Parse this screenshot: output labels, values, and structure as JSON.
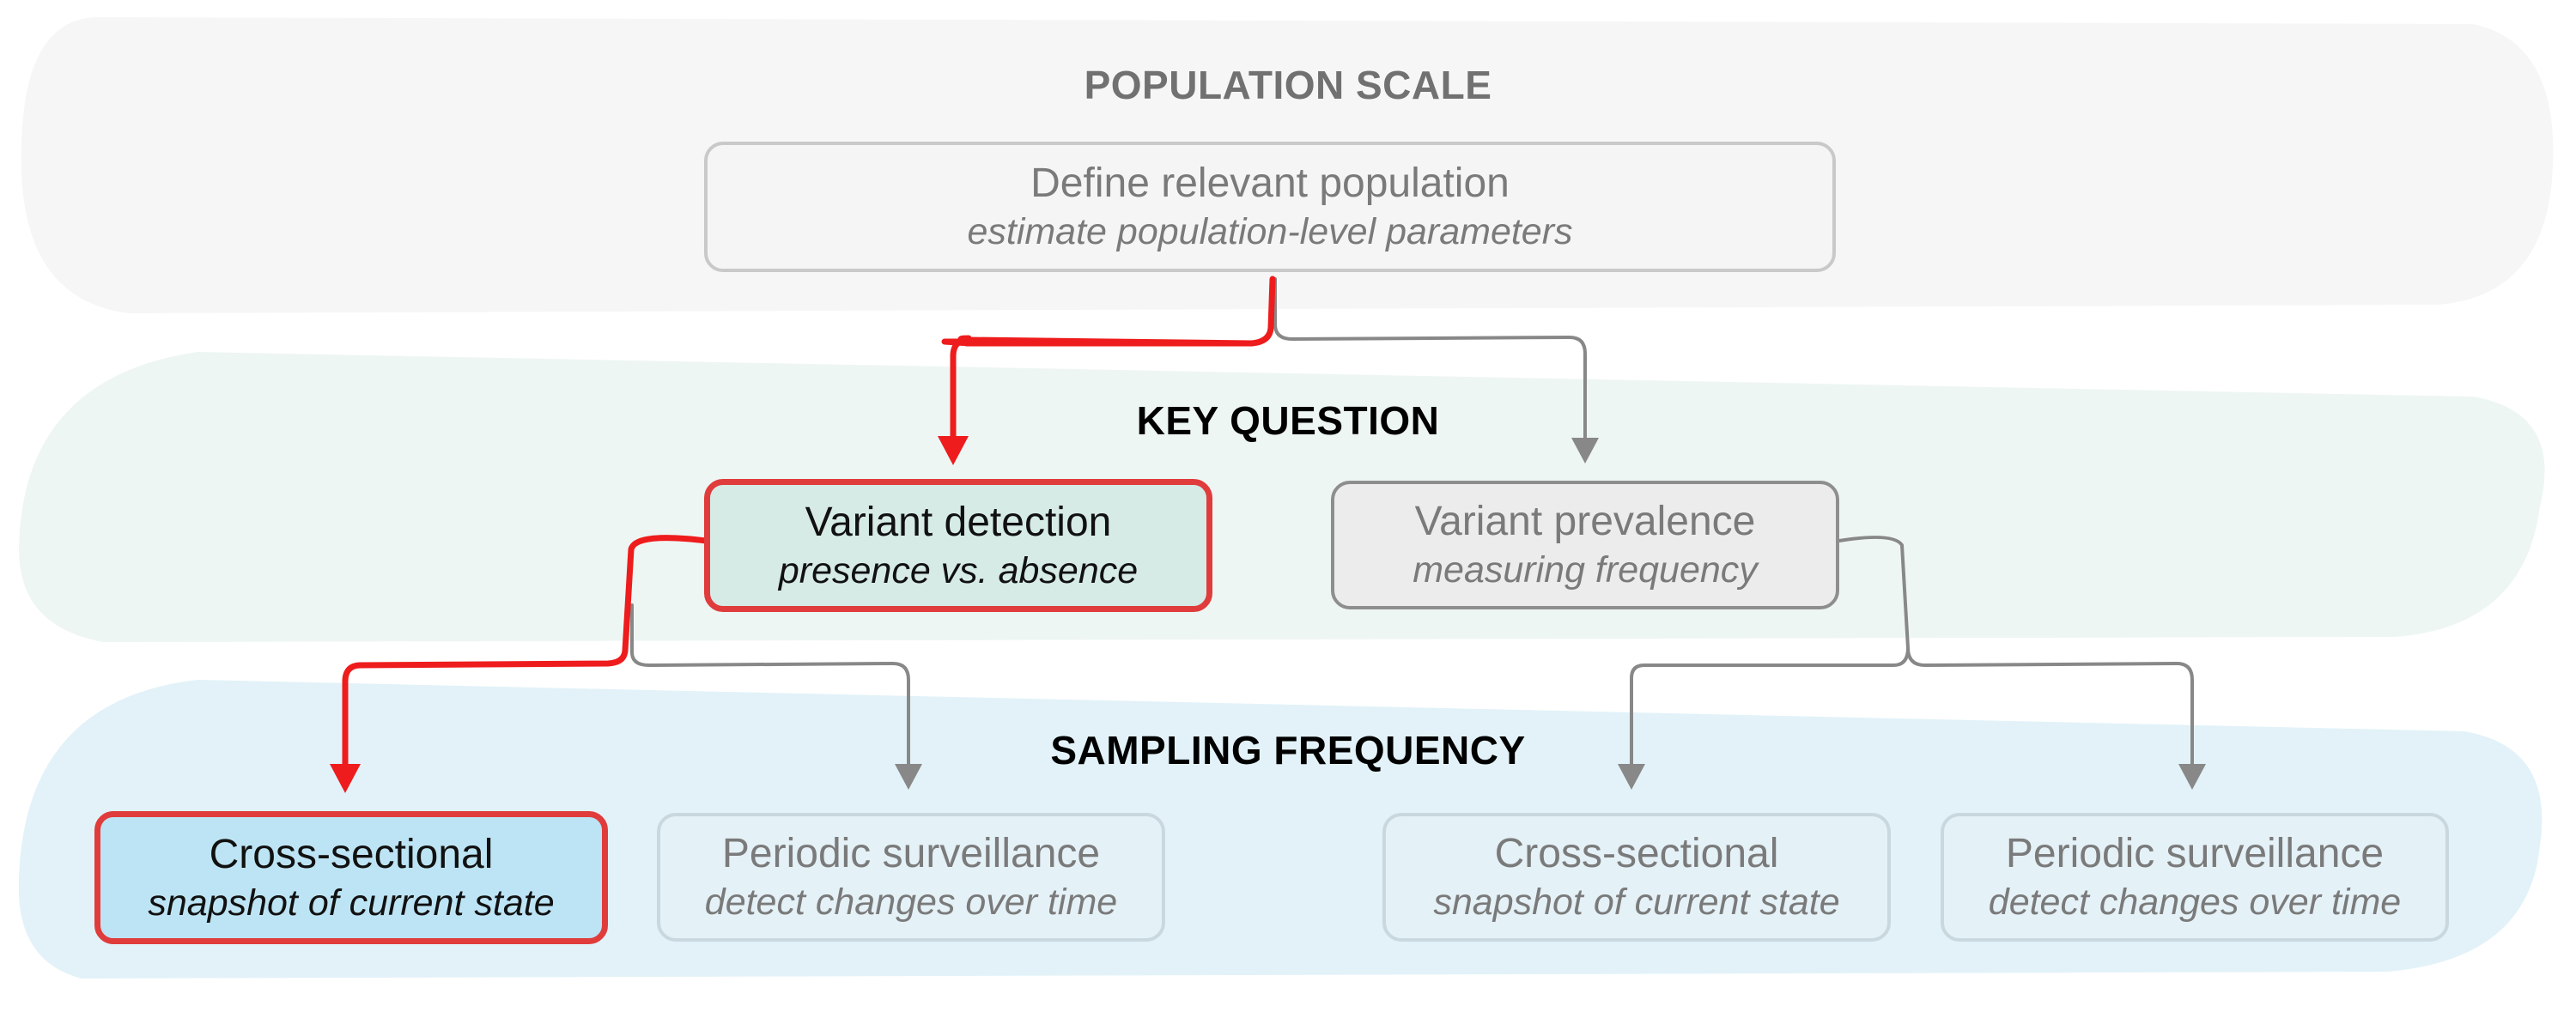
{
  "tiers": {
    "population": {
      "label": "POPULATION SCALE",
      "color": "#717171",
      "band": "#f6f6f6"
    },
    "question": {
      "label": "KEY QUESTION",
      "color": "#000000",
      "band": "#eef6f3"
    },
    "sampling": {
      "label": "SAMPLING FREQUENCY",
      "color": "#000000",
      "band": "#e2f2f8"
    }
  },
  "nodes": {
    "define": {
      "title": "Define relevant population",
      "subtitle": "estimate population-level parameters"
    },
    "detection": {
      "title": "Variant detection",
      "subtitle": "presence vs. absence"
    },
    "prevalence": {
      "title": "Variant prevalence",
      "subtitle": "measuring frequency"
    },
    "det_cross": {
      "title": "Cross-sectional",
      "subtitle": "snapshot of current state"
    },
    "det_periodic": {
      "title": "Periodic surveillance",
      "subtitle": "detect changes over time"
    },
    "prev_cross": {
      "title": "Cross-sectional",
      "subtitle": "snapshot of current state"
    },
    "prev_periodic": {
      "title": "Periodic surveillance",
      "subtitle": "detect changes over time"
    }
  },
  "colors": {
    "highlight_path": "#ee1c1c",
    "default_path": "#888888"
  }
}
